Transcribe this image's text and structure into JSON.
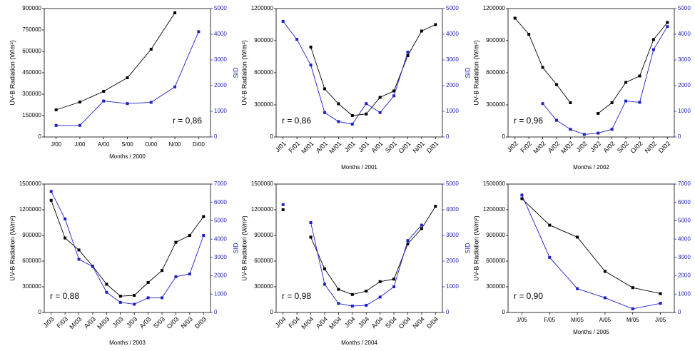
{
  "chart_data": [
    {
      "type": "line",
      "xlabel": "Months / 2000",
      "ylabel": "UV-B Radiation (W/m²)",
      "y2label": "SID",
      "annotation": "r = 0,86",
      "annotation_corner": "lower right",
      "categories": [
        "J/00",
        "J/00",
        "A/00",
        "S/00",
        "O/00",
        "N/00",
        "D/00"
      ],
      "series": [
        {
          "color": "#000000",
          "axis": "y",
          "values": [
            190000,
            245000,
            320000,
            415000,
            615000,
            870000,
            null
          ]
        },
        {
          "color": "#2020c8",
          "axis": "y2",
          "values": [
            450,
            450,
            1400,
            1300,
            1350,
            1950,
            4100
          ]
        }
      ],
      "ylim": [
        0,
        900000
      ],
      "yticks": [
        0,
        150000,
        300000,
        450000,
        600000,
        750000,
        900000
      ],
      "y2lim": [
        0,
        5000
      ],
      "y2ticks": [
        0,
        1000,
        2000,
        3000,
        4000,
        5000
      ]
    },
    {
      "type": "line",
      "xlabel": "Months / 2001",
      "ylabel": "UV-B Radiation (W/m²)",
      "y2label": "SID",
      "annotation": "r = 0,86",
      "annotation_corner": "lower left",
      "categories": [
        "J/01",
        "F/01",
        "M/01",
        "A/01",
        "M/01",
        "J/01",
        "J/01",
        "A/01",
        "S/01",
        "O/01",
        "N/01",
        "D/01"
      ],
      "series": [
        {
          "color": "#000000",
          "axis": "y",
          "values": [
            null,
            null,
            840000,
            450000,
            310000,
            200000,
            215000,
            370000,
            430000,
            760000,
            990000,
            1050000
          ]
        },
        {
          "color": "#2020c8",
          "axis": "y2",
          "values": [
            4500,
            3800,
            2800,
            950,
            600,
            500,
            1300,
            950,
            1600,
            3300,
            null,
            null
          ]
        }
      ],
      "ylim": [
        0,
        1200000
      ],
      "yticks": [
        0,
        300000,
        600000,
        900000,
        1200000
      ],
      "y2lim": [
        0,
        5000
      ],
      "y2ticks": [
        0,
        1000,
        2000,
        3000,
        4000,
        5000
      ]
    },
    {
      "type": "line",
      "xlabel": "Months / 2002",
      "ylabel": "UV-B Radiation (W/m²)",
      "y2label": "SID",
      "annotation": "r = 0,96",
      "annotation_corner": "lower left",
      "categories": [
        "J/02",
        "F/02",
        "M/02",
        "A/02",
        "M/02",
        "J/02",
        "J/02",
        "A/02",
        "S/02",
        "O/02",
        "N/02",
        "D/02"
      ],
      "series": [
        {
          "color": "#000000",
          "axis": "y",
          "values": [
            1110000,
            960000,
            650000,
            490000,
            320000,
            null,
            220000,
            320000,
            510000,
            570000,
            910000,
            1070000
          ]
        },
        {
          "color": "#2020c8",
          "axis": "y2",
          "values": [
            null,
            null,
            1300,
            650,
            300,
            100,
            150,
            300,
            1400,
            1350,
            3400,
            4300
          ]
        }
      ],
      "ylim": [
        0,
        1200000
      ],
      "yticks": [
        0,
        300000,
        600000,
        900000,
        1200000
      ],
      "y2lim": [
        0,
        5000
      ],
      "y2ticks": [
        0,
        1000,
        2000,
        3000,
        4000,
        5000
      ]
    },
    {
      "type": "line",
      "xlabel": "Months / 2003",
      "ylabel": "UV-B Radiation (W/m²)",
      "y2label": "SID",
      "annotation": "r = 0,88",
      "annotation_corner": "lower left",
      "categories": [
        "J/03",
        "F/03",
        "M/03",
        "A/03",
        "M/03",
        "J/03",
        "J/03",
        "A/03",
        "S/03",
        "O/03",
        "N/03",
        "D/03"
      ],
      "series": [
        {
          "color": "#000000",
          "axis": "y",
          "values": [
            1310000,
            870000,
            730000,
            540000,
            330000,
            190000,
            200000,
            350000,
            490000,
            820000,
            900000,
            1120000
          ]
        },
        {
          "color": "#2020c8",
          "axis": "y2",
          "values": [
            6600,
            5100,
            2900,
            2500,
            1100,
            550,
            450,
            800,
            800,
            1950,
            2100,
            4200
          ]
        }
      ],
      "ylim": [
        0,
        1500000
      ],
      "yticks": [
        0,
        300000,
        600000,
        900000,
        1200000,
        1500000
      ],
      "y2lim": [
        0,
        7000
      ],
      "y2ticks": [
        0,
        1000,
        2000,
        3000,
        4000,
        5000,
        6000,
        7000
      ]
    },
    {
      "type": "line",
      "xlabel": "Months / 2004",
      "ylabel": "UV-B Radiation (W/m²)",
      "y2label": "SID",
      "annotation": "r = 0,98",
      "annotation_corner": "lower left",
      "categories": [
        "J/04",
        "F/04",
        "M/04",
        "A/04",
        "M/04",
        "J/04",
        "J/04",
        "A/04",
        "S/04",
        "O/04",
        "N/04",
        "D/04"
      ],
      "series": [
        {
          "color": "#000000",
          "axis": "y",
          "values": [
            1200000,
            null,
            880000,
            510000,
            270000,
            210000,
            250000,
            360000,
            390000,
            800000,
            980000,
            1240000
          ]
        },
        {
          "color": "#2020c8",
          "axis": "y2",
          "values": [
            4200,
            null,
            3500,
            1100,
            350,
            250,
            280,
            600,
            1000,
            2800,
            3400,
            null
          ]
        }
      ],
      "ylim": [
        0,
        1500000
      ],
      "yticks": [
        0,
        300000,
        600000,
        900000,
        1200000,
        1500000
      ],
      "y2lim": [
        0,
        5000
      ],
      "y2ticks": [
        0,
        1000,
        2000,
        3000,
        4000,
        5000
      ]
    },
    {
      "type": "line",
      "xlabel": "Months / 2005",
      "ylabel": "UV-B Radiation (W/m²)",
      "y2label": "SID",
      "annotation": "r = 0,90",
      "annotation_corner": "lower left",
      "categories": [
        "J/05",
        "F/05",
        "M/05",
        "A/05",
        "M/05",
        "J/05"
      ],
      "series": [
        {
          "color": "#000000",
          "axis": "y",
          "values": [
            1330000,
            1020000,
            880000,
            480000,
            290000,
            220000
          ]
        },
        {
          "color": "#2020c8",
          "axis": "y2",
          "values": [
            6400,
            3000,
            1300,
            800,
            200,
            500
          ]
        }
      ],
      "ylim": [
        0,
        1500000
      ],
      "yticks": [
        0,
        300000,
        600000,
        900000,
        1200000,
        1500000
      ],
      "y2lim": [
        0,
        7000
      ],
      "y2ticks": [
        0,
        1000,
        2000,
        3000,
        4000,
        5000,
        6000,
        7000
      ]
    }
  ]
}
